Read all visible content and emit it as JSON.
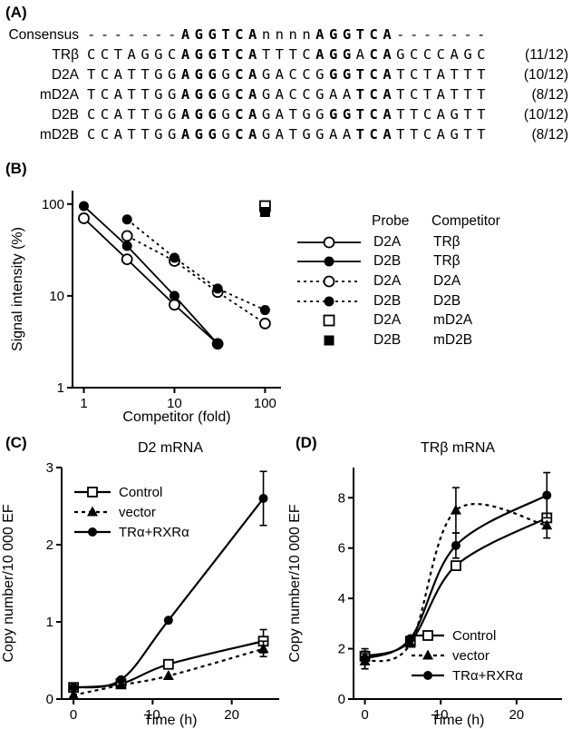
{
  "colors": {
    "ink": "#000000",
    "background": "#ffffff"
  },
  "panelA": {
    "label": "(A)",
    "rows": [
      {
        "name": "Consensus",
        "score": "",
        "segments": [
          {
            "t": "-------",
            "b": false
          },
          {
            "t": "AGGTCA",
            "b": true
          },
          {
            "t": "nnnn",
            "b": false
          },
          {
            "t": "AGGTCA",
            "b": true
          },
          {
            "t": "-------",
            "b": false
          }
        ]
      },
      {
        "name": "TRβ",
        "score": "(11/12)",
        "segments": [
          {
            "t": "CCTAGGC",
            "b": false
          },
          {
            "t": "AGGTCA",
            "b": true
          },
          {
            "t": "TTTC",
            "b": false
          },
          {
            "t": "AGG",
            "b": true
          },
          {
            "t": "A",
            "b": false
          },
          {
            "t": "CA",
            "b": true
          },
          {
            "t": "GCCCAGC",
            "b": false
          }
        ]
      },
      {
        "name": "D2A",
        "score": "(10/12)",
        "segments": [
          {
            "t": "TCATTGG",
            "b": false
          },
          {
            "t": "AGG",
            "b": true
          },
          {
            "t": "G",
            "b": false
          },
          {
            "t": "CA",
            "b": true
          },
          {
            "t": "GACCG",
            "b": false
          },
          {
            "t": "GGTCA",
            "b": true
          },
          {
            "t": "TCTATTT",
            "b": false
          }
        ]
      },
      {
        "name": "mD2A",
        "score": "(8/12)",
        "segments": [
          {
            "t": "TCATTGG",
            "b": false
          },
          {
            "t": "AGG",
            "b": true
          },
          {
            "t": "G",
            "b": false
          },
          {
            "t": "CA",
            "b": true
          },
          {
            "t": "GACCGAA",
            "b": false
          },
          {
            "t": "TCA",
            "b": true
          },
          {
            "t": "TCTATTT",
            "b": false
          }
        ]
      },
      {
        "name": "D2B",
        "score": "(10/12)",
        "segments": [
          {
            "t": "CCATTGG",
            "b": false
          },
          {
            "t": "AGG",
            "b": true
          },
          {
            "t": "G",
            "b": false
          },
          {
            "t": "CA",
            "b": true
          },
          {
            "t": "GATGG",
            "b": false
          },
          {
            "t": "GGTCA",
            "b": true
          },
          {
            "t": "TTCAGTT",
            "b": false
          }
        ]
      },
      {
        "name": "mD2B",
        "score": "(8/12)",
        "segments": [
          {
            "t": "CCATTGG",
            "b": false
          },
          {
            "t": "AGG",
            "b": true
          },
          {
            "t": "G",
            "b": false
          },
          {
            "t": "CA",
            "b": true
          },
          {
            "t": "GATGGAA",
            "b": false
          },
          {
            "t": "TCA",
            "b": true
          },
          {
            "t": "TTCAGTT",
            "b": false
          }
        ]
      }
    ]
  },
  "panelB": {
    "label": "(B)"
  },
  "panelC": {
    "label": "(C)"
  },
  "panelD": {
    "label": "(D)"
  },
  "chart_data": [
    {
      "id": "B",
      "type": "line",
      "xscale": "log",
      "yscale": "log",
      "xlabel": "Competitor (fold)",
      "ylabel": "Signal intensity (%)",
      "xlim": [
        0.75,
        150
      ],
      "ylim": [
        1,
        140
      ],
      "xticks": [
        1,
        10,
        100
      ],
      "yticks": [
        1,
        10,
        100
      ],
      "legend": {
        "headers": [
          "Probe",
          "Competitor"
        ],
        "position": "right"
      },
      "series": [
        {
          "probe": "D2A",
          "competitor": "TRβ",
          "marker": "circle-open",
          "line": "solid",
          "x": [
            1,
            3,
            10,
            30
          ],
          "y": [
            70,
            25,
            8,
            3
          ]
        },
        {
          "probe": "D2B",
          "competitor": "TRβ",
          "marker": "circle-filled",
          "line": "solid",
          "x": [
            1,
            3,
            10,
            30
          ],
          "y": [
            95,
            35,
            10,
            3
          ]
        },
        {
          "probe": "D2A",
          "competitor": "D2A",
          "marker": "circle-open",
          "line": "dashed",
          "x": [
            3,
            10,
            30,
            100
          ],
          "y": [
            45,
            24,
            11,
            5
          ]
        },
        {
          "probe": "D2B",
          "competitor": "D2B",
          "marker": "circle-filled",
          "line": "dashed",
          "x": [
            3,
            10,
            30,
            100
          ],
          "y": [
            68,
            26,
            12,
            7
          ]
        },
        {
          "probe": "D2A",
          "competitor": "mD2A",
          "marker": "square-open",
          "line": "none",
          "x": [
            100
          ],
          "y": [
            95
          ]
        },
        {
          "probe": "D2B",
          "competitor": "mD2B",
          "marker": "square-filled",
          "line": "none",
          "x": [
            100
          ],
          "y": [
            82
          ]
        }
      ]
    },
    {
      "id": "C",
      "type": "line",
      "xscale": "linear",
      "yscale": "linear",
      "title": "D2 mRNA",
      "xlabel": "Time (h)",
      "ylabel": "Copy number/10 000 EF",
      "xlim": [
        -1.5,
        26
      ],
      "ylim": [
        0,
        3
      ],
      "xticks": [
        0,
        10,
        20
      ],
      "yticks": [
        0,
        1,
        2,
        3
      ],
      "legend": {
        "position": "top-left",
        "labels": [
          "Control",
          "vector",
          "TRα+RXRα"
        ]
      },
      "series": [
        {
          "name": "Control",
          "marker": "square-open",
          "line": "solid",
          "x": [
            0,
            6,
            12,
            24
          ],
          "y": [
            0.15,
            0.2,
            0.45,
            0.75
          ],
          "err": [
            0,
            0,
            0,
            0.15
          ]
        },
        {
          "name": "vector",
          "marker": "triangle-filled",
          "line": "dashed",
          "x": [
            0,
            6,
            12,
            24
          ],
          "y": [
            0.05,
            0.18,
            0.3,
            0.65
          ],
          "err": [
            0,
            0,
            0,
            0.1
          ]
        },
        {
          "name": "TRα+RXRα",
          "marker": "circle-filled",
          "line": "solid",
          "x": [
            0,
            6,
            12,
            24
          ],
          "y": [
            0.15,
            0.25,
            1.02,
            2.6
          ],
          "err": [
            0,
            0,
            0,
            0.35
          ]
        }
      ]
    },
    {
      "id": "D",
      "type": "line",
      "xscale": "linear",
      "yscale": "linear",
      "title": "TRβ mRNA",
      "xlabel": "Time (h)",
      "ylabel": "Copy number/10 000 EF",
      "xlim": [
        -1.5,
        26
      ],
      "ylim": [
        0,
        9.2
      ],
      "xticks": [
        0,
        10,
        20
      ],
      "yticks": [
        0,
        2,
        4,
        6,
        8
      ],
      "legend": {
        "position": "bottom-right",
        "labels": [
          "Control",
          "vector",
          "TRα+RXRα"
        ]
      },
      "series": [
        {
          "name": "Control",
          "marker": "square-open",
          "line": "solid",
          "x": [
            0,
            6,
            12,
            24
          ],
          "y": [
            1.7,
            2.3,
            5.3,
            7.2
          ],
          "err": [
            0.2,
            0,
            0,
            0.8
          ]
        },
        {
          "name": "vector",
          "marker": "triangle-filled",
          "line": "dashed",
          "x": [
            0,
            6,
            12,
            24
          ],
          "y": [
            1.5,
            2.2,
            7.5,
            6.9
          ],
          "err": [
            0.3,
            0,
            0.9,
            0
          ]
        },
        {
          "name": "TRα+RXRα",
          "marker": "circle-filled",
          "line": "solid",
          "x": [
            0,
            6,
            12,
            24
          ],
          "y": [
            1.6,
            2.4,
            6.1,
            8.1
          ],
          "err": [
            0.4,
            0,
            0.5,
            0.9
          ]
        }
      ]
    }
  ]
}
